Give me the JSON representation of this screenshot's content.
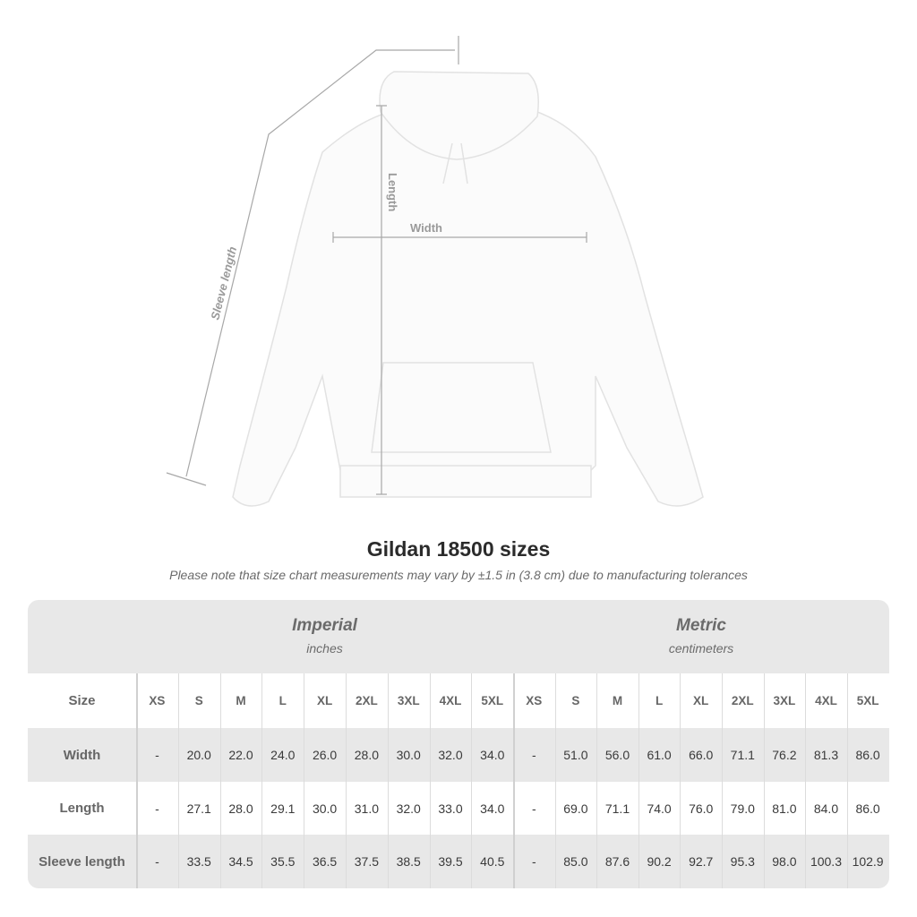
{
  "illustration": {
    "labels": {
      "sleeve": "Sleeve length",
      "length": "Length",
      "width": "Width"
    }
  },
  "title": "Gildan 18500 sizes",
  "note": "Please note that size chart measurements may vary by ±1.5 in (3.8 cm) due to manufacturing tolerances",
  "table": {
    "groups": [
      {
        "title": "Imperial",
        "unit": "inches"
      },
      {
        "title": "Metric",
        "unit": "centimeters"
      }
    ],
    "size_label": "Size",
    "sizes": [
      "XS",
      "S",
      "M",
      "L",
      "XL",
      "2XL",
      "3XL",
      "4XL",
      "5XL"
    ],
    "rows": [
      {
        "label": "Width",
        "imperial": [
          "-",
          "20.0",
          "22.0",
          "24.0",
          "26.0",
          "28.0",
          "30.0",
          "32.0",
          "34.0"
        ],
        "metric": [
          "-",
          "51.0",
          "56.0",
          "61.0",
          "66.0",
          "71.1",
          "76.2",
          "81.3",
          "86.0"
        ]
      },
      {
        "label": "Length",
        "imperial": [
          "-",
          "27.1",
          "28.0",
          "29.1",
          "30.0",
          "31.0",
          "32.0",
          "33.0",
          "34.0"
        ],
        "metric": [
          "-",
          "69.0",
          "71.1",
          "74.0",
          "76.0",
          "79.0",
          "81.0",
          "84.0",
          "86.0"
        ]
      },
      {
        "label": "Sleeve length",
        "imperial": [
          "-",
          "33.5",
          "34.5",
          "35.5",
          "36.5",
          "37.5",
          "38.5",
          "39.5",
          "40.5"
        ],
        "metric": [
          "-",
          "85.0",
          "87.6",
          "90.2",
          "92.7",
          "95.3",
          "98.0",
          "100.3",
          "102.9"
        ]
      }
    ]
  },
  "colors": {
    "band": "#e8e8e8",
    "text": "#3a3a3a",
    "header": "#666666"
  }
}
